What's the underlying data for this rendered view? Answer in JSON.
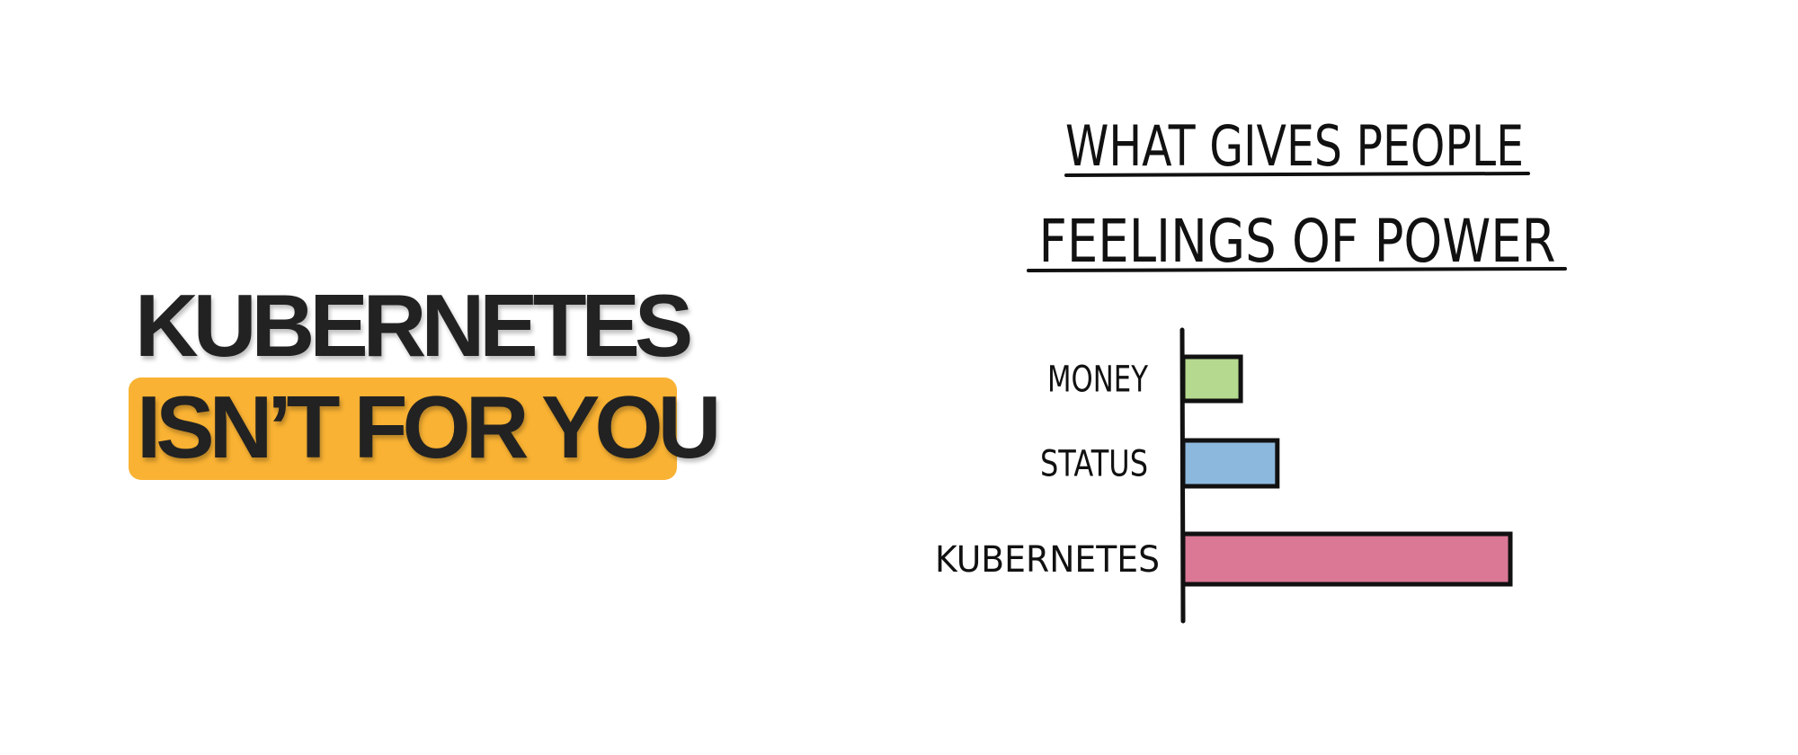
{
  "headline": {
    "line1": "KUBERNETES",
    "line2": "ISN’T FOR YOU",
    "highlight_color": "#f9b233",
    "text_color": "#222222"
  },
  "chart_data": {
    "type": "bar",
    "orientation": "horizontal",
    "title_lines": [
      "WHAT GIVES PEOPLE",
      "FEELINGS OF POWER"
    ],
    "categories": [
      "MONEY",
      "STATUS",
      "KUBERNETES"
    ],
    "values": [
      17.6,
      28.8,
      100
    ],
    "colors": [
      "#b5d98f",
      "#8db8dd",
      "#db7896"
    ],
    "xlabel": "",
    "ylabel": "",
    "grid": false,
    "legend": "none"
  }
}
